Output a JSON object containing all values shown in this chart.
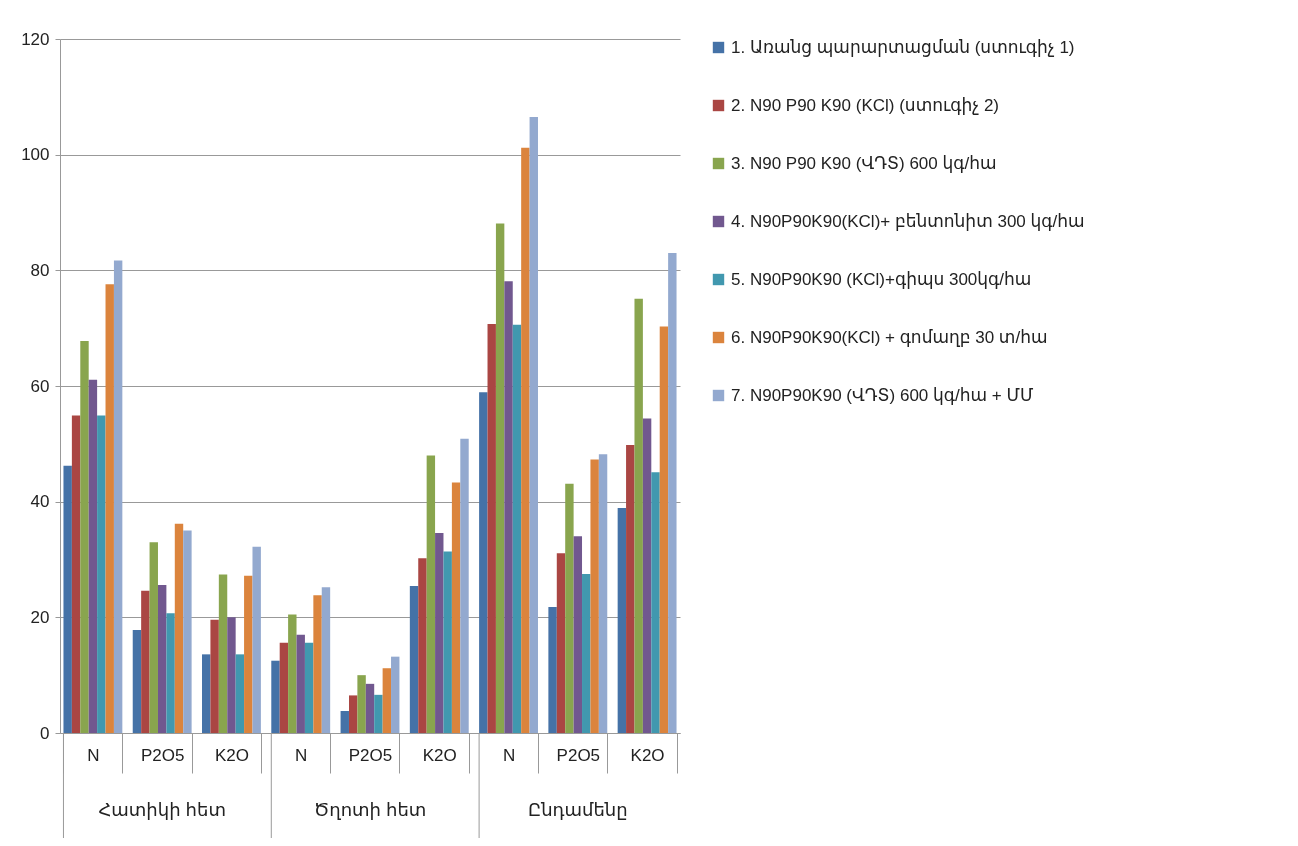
{
  "chart_data": {
    "type": "bar",
    "categories": [
      "N",
      "P2O5",
      "K2O",
      "N",
      "P2O5",
      "K2O",
      "N",
      "P2O5",
      "K2O"
    ],
    "annotations": [
      "Հատիկի հետ",
      "Ծղոտի հետ",
      "Ընդամենը"
    ],
    "ylim": [
      0,
      120
    ],
    "yticks": [
      0,
      20,
      40,
      60,
      80,
      100,
      120
    ],
    "grid": "y",
    "legend": "right",
    "series": [
      {
        "name": "1. Առանց պարարտացման (ստուգիչ 1)",
        "color": "#4572a7",
        "values": [
          46.2,
          17.8,
          13.6,
          12.5,
          3.8,
          25.4,
          58.9,
          21.8,
          38.9
        ]
      },
      {
        "name": "2. N90 P90 K90 (KCl) (ստուգիչ 2)",
        "color": "#aa4643",
        "values": [
          54.9,
          24.6,
          19.6,
          15.6,
          6.5,
          30.2,
          70.7,
          31.1,
          49.8
        ]
      },
      {
        "name": "3. N90 P90 K90 (ՎԴՏ) 600 կգ/հա",
        "color": "#89a54e",
        "values": [
          67.8,
          33.0,
          27.4,
          20.5,
          10.0,
          48.0,
          88.1,
          43.1,
          75.1
        ]
      },
      {
        "name": "4. N90P90K90(KCl)+ բենտոնիտ 300 կգ/հա",
        "color": "#71588f",
        "values": [
          61.1,
          25.6,
          20.0,
          17.0,
          8.5,
          34.6,
          78.1,
          34.0,
          54.4
        ]
      },
      {
        "name": "5. N90P90K90 (KCl)+գիպս 300կգ/հա",
        "color": "#4198af",
        "values": [
          54.9,
          20.7,
          13.6,
          15.6,
          6.6,
          31.4,
          70.6,
          27.5,
          45.1
        ]
      },
      {
        "name": "6.  N90P90K90(KCl) + գոմաղբ 30 տ/հա",
        "color": "#db843d",
        "values": [
          77.6,
          36.2,
          27.2,
          23.8,
          11.2,
          43.3,
          101.2,
          47.3,
          70.3
        ]
      },
      {
        "name": "7. N90P90K90 (ՎԴՏ) 600 կգ/հա + ՄՄ",
        "color": "#93a9cf",
        "values": [
          81.7,
          35.0,
          32.2,
          25.2,
          13.2,
          50.9,
          106.5,
          48.2,
          83.0
        ]
      }
    ]
  }
}
